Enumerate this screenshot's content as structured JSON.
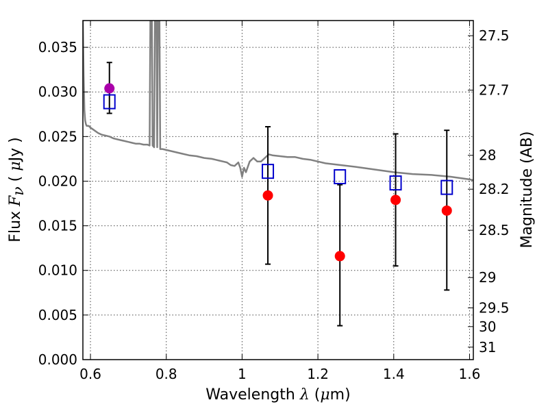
{
  "chart_data": {
    "type": "scatter",
    "title": "",
    "xlabel": {
      "text": "Wavelength",
      "symbol": "λ",
      "unit_open": "(",
      "unit_mu": "μ",
      "unit_rest": "m)"
    },
    "ylabel": {
      "text": "Flux",
      "symbol": "F",
      "subscript": "ν",
      "unit_open": "(",
      "unit_mu": "μ",
      "unit_rest": "Jy )"
    },
    "y2label": "Magnitude (AB)",
    "xlim": [
      0.58,
      1.61
    ],
    "ylim": [
      0.0,
      0.038
    ],
    "x_ticks": [
      {
        "value": 0.6,
        "label": "0.6"
      },
      {
        "value": 0.8,
        "label": "0.8"
      },
      {
        "value": 1.0,
        "label": "1"
      },
      {
        "value": 1.2,
        "label": "1.2"
      },
      {
        "value": 1.4,
        "label": "1.4"
      },
      {
        "value": 1.6,
        "label": "1.6"
      }
    ],
    "y_ticks": [
      {
        "value": 0.0,
        "label": "0.000"
      },
      {
        "value": 0.005,
        "label": "0.005"
      },
      {
        "value": 0.01,
        "label": "0.010"
      },
      {
        "value": 0.015,
        "label": "0.015"
      },
      {
        "value": 0.02,
        "label": "0.020"
      },
      {
        "value": 0.025,
        "label": "0.025"
      },
      {
        "value": 0.03,
        "label": "0.030"
      },
      {
        "value": 0.035,
        "label": "0.035"
      }
    ],
    "y2_ticks": [
      {
        "flux": 0.0363,
        "label": "27.5"
      },
      {
        "flux": 0.0302,
        "label": "27.7"
      },
      {
        "flux": 0.0229,
        "label": "28"
      },
      {
        "flux": 0.0191,
        "label": "28.2"
      },
      {
        "flux": 0.0145,
        "label": "28.5"
      },
      {
        "flux": 0.0092,
        "label": "29"
      },
      {
        "flux": 0.0058,
        "label": "29.5"
      },
      {
        "flux": 0.0037,
        "label": "30"
      },
      {
        "flux": 0.0014,
        "label": "31"
      }
    ],
    "grid": true,
    "colors": {
      "model": "#808080",
      "observed": "#ff0000",
      "observed_first": "#aa00aa",
      "model_band": "#0000cc",
      "errorbar": "#000000",
      "grid": "#444444"
    },
    "series": [
      {
        "kind": "model_spectrum",
        "x": [
          0.58,
          0.582,
          0.584,
          0.586,
          0.588,
          0.59,
          0.595,
          0.6,
          0.61,
          0.62,
          0.63,
          0.64,
          0.65,
          0.66,
          0.67,
          0.68,
          0.69,
          0.7,
          0.71,
          0.72,
          0.73,
          0.74,
          0.75,
          0.756,
          0.758,
          0.76,
          0.762,
          0.764,
          0.766,
          0.768,
          0.77,
          0.772,
          0.774,
          0.776,
          0.778,
          0.78,
          0.782,
          0.784,
          0.786,
          0.79,
          0.8,
          0.82,
          0.84,
          0.86,
          0.88,
          0.9,
          0.92,
          0.93,
          0.94,
          0.95,
          0.96,
          0.97,
          0.98,
          0.99,
          0.995,
          1.0,
          1.005,
          1.01,
          1.02,
          1.03,
          1.04,
          1.05,
          1.06,
          1.07,
          1.08,
          1.1,
          1.12,
          1.14,
          1.16,
          1.18,
          1.2,
          1.22,
          1.26,
          1.3,
          1.35,
          1.4,
          1.45,
          1.5,
          1.55,
          1.6,
          1.61
        ],
        "y": [
          0.038,
          0.032,
          0.028,
          0.0268,
          0.0264,
          0.0262,
          0.0262,
          0.026,
          0.0257,
          0.0254,
          0.0252,
          0.0251,
          0.025,
          0.0248,
          0.0247,
          0.0246,
          0.0245,
          0.0244,
          0.0243,
          0.0242,
          0.0242,
          0.0241,
          0.0241,
          0.024,
          0.038,
          0.038,
          0.038,
          0.024,
          0.0239,
          0.0238,
          0.038,
          0.038,
          0.038,
          0.0238,
          0.038,
          0.038,
          0.038,
          0.0236,
          0.0236,
          0.0236,
          0.0235,
          0.0233,
          0.0231,
          0.0229,
          0.0228,
          0.0226,
          0.0225,
          0.0224,
          0.0223,
          0.0222,
          0.0221,
          0.0218,
          0.0217,
          0.0221,
          0.0215,
          0.0205,
          0.0215,
          0.021,
          0.0222,
          0.0226,
          0.0222,
          0.0222,
          0.0226,
          0.023,
          0.0229,
          0.0228,
          0.0227,
          0.0227,
          0.0225,
          0.0224,
          0.0222,
          0.022,
          0.0218,
          0.0216,
          0.0213,
          0.021,
          0.0208,
          0.0207,
          0.0205,
          0.0202,
          0.0201
        ]
      },
      {
        "kind": "observed",
        "x": [
          0.65,
          1.068,
          1.258,
          1.405,
          1.54
        ],
        "y": [
          0.0304,
          0.0184,
          0.0116,
          0.0179,
          0.0167
        ],
        "yerr_low": [
          0.0276,
          0.0107,
          0.0038,
          0.0105,
          0.0078
        ],
        "yerr_high": [
          0.0333,
          0.0261,
          0.0196,
          0.0253,
          0.0257
        ]
      },
      {
        "kind": "model_band",
        "x": [
          0.65,
          1.068,
          1.258,
          1.405,
          1.54
        ],
        "y": [
          0.0289,
          0.0211,
          0.0205,
          0.0198,
          0.0193
        ]
      }
    ]
  }
}
